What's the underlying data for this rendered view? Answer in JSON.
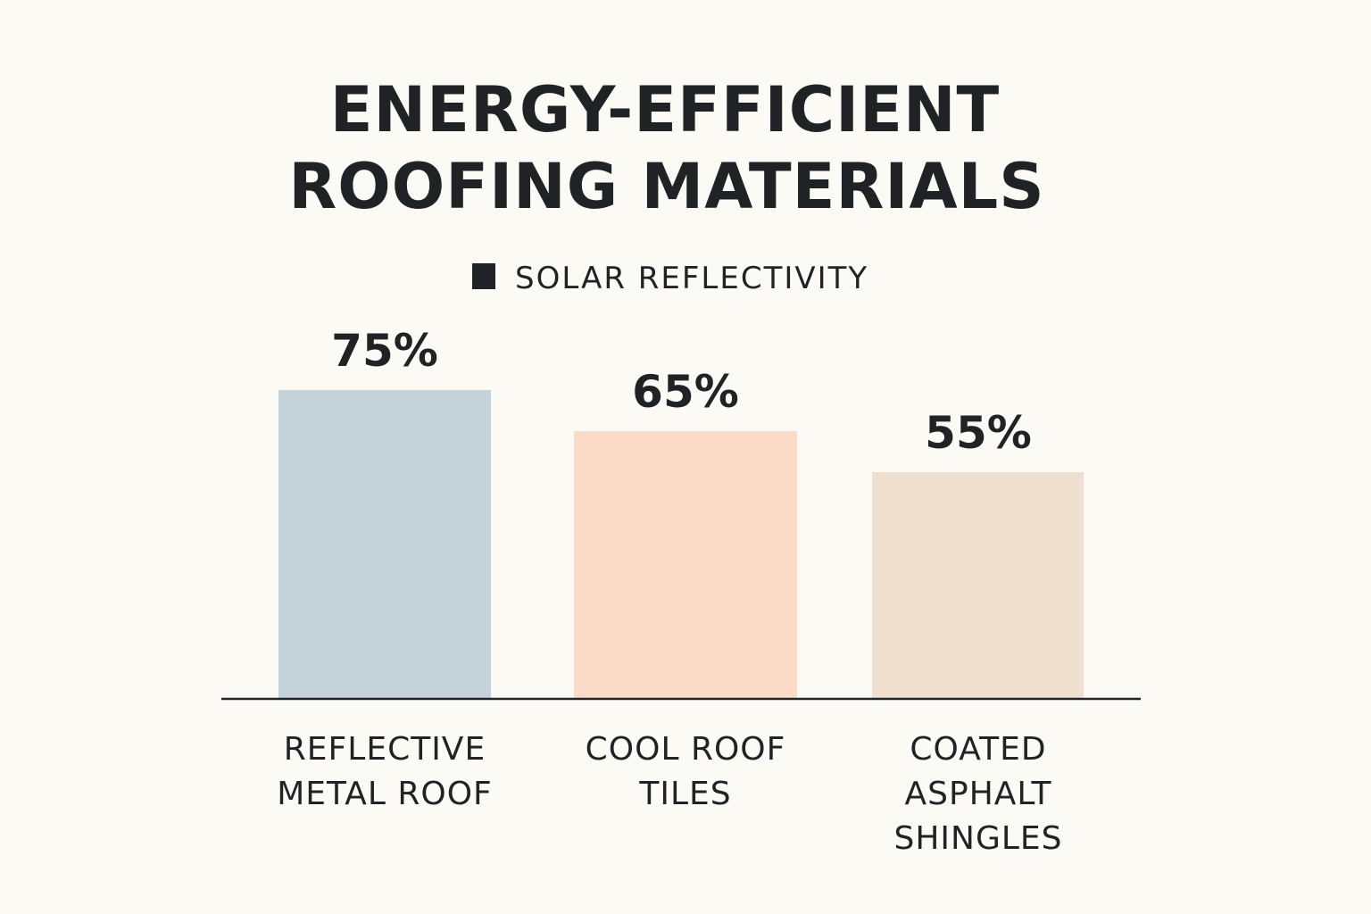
{
  "chart_data": {
    "type": "bar",
    "title_lines": [
      "ENERGY-EFFICIENT",
      "ROOFING MATERIALS"
    ],
    "categories": [
      [
        "REFLECTIVE",
        "METAL ROOF"
      ],
      [
        "COOL ROOF",
        "TILES"
      ],
      [
        "COATED",
        "ASPHALT",
        "SHINGLES"
      ]
    ],
    "series": [
      {
        "name": "SOLAR REFLECTIVITY",
        "values": [
          75,
          65,
          55
        ],
        "labels": [
          "75%",
          "65%",
          "55%"
        ],
        "colors": [
          "#c4d3d9",
          "#fbdbc6",
          "#efdfcf"
        ]
      }
    ],
    "legend_color": "#1f2326",
    "legend_position": "top-center",
    "axis_color": "#1f2326",
    "grid": false
  }
}
